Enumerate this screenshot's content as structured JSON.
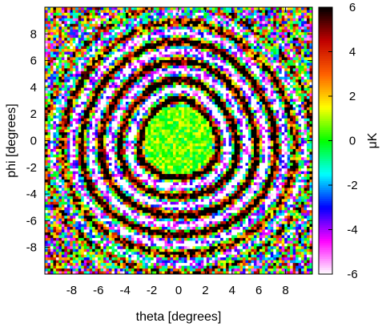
{
  "chart_data": {
    "type": "heatmap",
    "xlabel": "theta [degrees]",
    "ylabel": "phi [degrees]",
    "colorbar_label": "μK",
    "xlim": [
      -10,
      10
    ],
    "ylim": [
      -10,
      10
    ],
    "clim": [
      -6,
      6
    ],
    "x_ticks": [
      -8,
      -6,
      -4,
      -2,
      0,
      2,
      4,
      6,
      8
    ],
    "y_ticks": [
      -8,
      -6,
      -4,
      -2,
      0,
      2,
      4,
      6,
      8
    ],
    "colorbar_ticks": [
      -6,
      -4,
      -2,
      0,
      2,
      4,
      6
    ],
    "colormap": [
      "#ffffff",
      "#ff00ff",
      "#0000ff",
      "#00ffff",
      "#00ff00",
      "#ffff00",
      "#ff6000",
      "#c00000",
      "#000000"
    ],
    "pattern": "concentric rings of alternating high/low values around a noisy central disk near (0,0)"
  }
}
